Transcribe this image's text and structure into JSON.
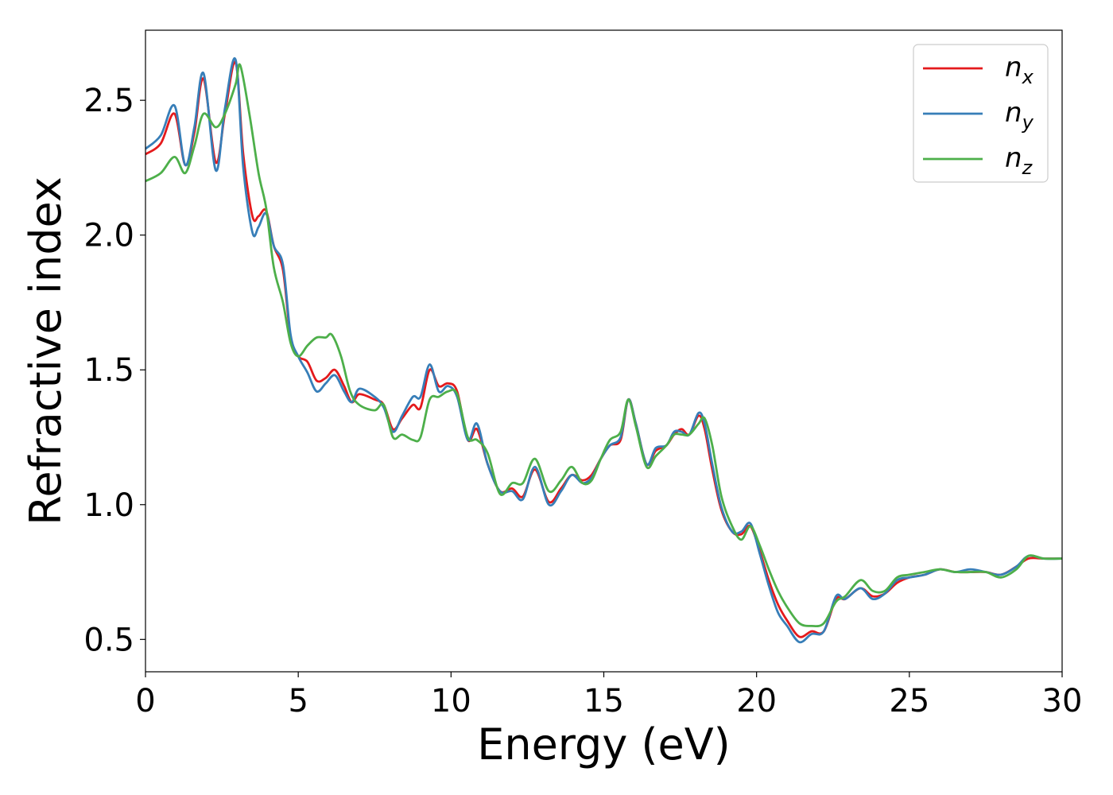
{
  "chart_data": {
    "type": "line",
    "xlabel": "Energy (eV)",
    "ylabel": "Refractive index",
    "xlim": [
      0,
      30
    ],
    "ylim": [
      0.38,
      2.76
    ],
    "xticks": [
      0,
      5,
      10,
      15,
      20,
      25,
      30
    ],
    "xtick_labels": [
      "0",
      "5",
      "10",
      "15",
      "20",
      "25",
      "30"
    ],
    "yticks": [
      0.5,
      1.0,
      1.5,
      2.0,
      2.5
    ],
    "ytick_labels": [
      "0.5",
      "1.0",
      "1.5",
      "2.0",
      "2.5"
    ],
    "grid": false,
    "legend_position": "top-right",
    "series": [
      {
        "name": "n_x",
        "label_main": "n",
        "label_sub": "x",
        "color": "#e41a1c",
        "x": [
          0,
          0.5,
          0.95,
          1.3,
          1.6,
          1.9,
          2.3,
          2.6,
          2.95,
          3.2,
          3.5,
          3.7,
          3.95,
          4.2,
          4.5,
          4.75,
          5.0,
          5.3,
          5.6,
          5.9,
          6.2,
          6.5,
          6.75,
          7.0,
          7.5,
          7.8,
          8.1,
          8.4,
          8.75,
          9.0,
          9.3,
          9.6,
          9.9,
          10.2,
          10.55,
          10.85,
          11.2,
          11.6,
          12.0,
          12.35,
          12.75,
          13.2,
          13.6,
          13.95,
          14.3,
          14.6,
          14.9,
          15.2,
          15.55,
          15.8,
          16.05,
          16.4,
          16.7,
          17.05,
          17.3,
          17.55,
          17.8,
          18.1,
          18.3,
          18.55,
          18.85,
          19.2,
          19.5,
          19.8,
          20.1,
          20.4,
          20.7,
          21.0,
          21.4,
          21.8,
          22.2,
          22.6,
          22.9,
          23.4,
          23.8,
          24.2,
          24.6,
          25.0,
          25.5,
          26.0,
          26.5,
          27.0,
          27.5,
          28.0,
          28.5,
          28.9,
          29.4,
          30.0
        ],
        "y": [
          2.3,
          2.34,
          2.45,
          2.26,
          2.38,
          2.58,
          2.27,
          2.45,
          2.64,
          2.3,
          2.07,
          2.07,
          2.09,
          1.96,
          1.87,
          1.62,
          1.55,
          1.53,
          1.46,
          1.47,
          1.5,
          1.44,
          1.38,
          1.41,
          1.39,
          1.37,
          1.28,
          1.32,
          1.37,
          1.36,
          1.5,
          1.44,
          1.45,
          1.42,
          1.24,
          1.28,
          1.15,
          1.05,
          1.06,
          1.03,
          1.13,
          1.01,
          1.06,
          1.11,
          1.09,
          1.11,
          1.17,
          1.22,
          1.24,
          1.39,
          1.3,
          1.15,
          1.2,
          1.22,
          1.26,
          1.28,
          1.26,
          1.33,
          1.28,
          1.13,
          0.98,
          0.9,
          0.89,
          0.92,
          0.83,
          0.72,
          0.63,
          0.57,
          0.51,
          0.53,
          0.53,
          0.65,
          0.65,
          0.69,
          0.66,
          0.67,
          0.71,
          0.73,
          0.74,
          0.76,
          0.75,
          0.75,
          0.75,
          0.74,
          0.77,
          0.8,
          0.8,
          0.8
        ]
      },
      {
        "name": "n_y",
        "label_main": "n",
        "label_sub": "y",
        "color": "#377eb8",
        "x": [
          0,
          0.5,
          0.95,
          1.3,
          1.6,
          1.9,
          2.3,
          2.6,
          2.95,
          3.2,
          3.5,
          3.7,
          3.95,
          4.2,
          4.5,
          4.75,
          5.0,
          5.3,
          5.6,
          5.9,
          6.2,
          6.5,
          6.75,
          7.0,
          7.5,
          7.8,
          8.1,
          8.4,
          8.75,
          9.0,
          9.3,
          9.6,
          9.9,
          10.2,
          10.55,
          10.85,
          11.2,
          11.6,
          12.0,
          12.35,
          12.75,
          13.2,
          13.6,
          13.95,
          14.3,
          14.6,
          14.9,
          15.2,
          15.55,
          15.8,
          16.05,
          16.4,
          16.7,
          17.05,
          17.3,
          17.55,
          17.8,
          18.1,
          18.3,
          18.55,
          18.85,
          19.2,
          19.5,
          19.8,
          20.1,
          20.4,
          20.7,
          21.0,
          21.4,
          21.8,
          22.2,
          22.6,
          22.9,
          23.4,
          23.8,
          24.2,
          24.6,
          25.0,
          25.5,
          26.0,
          26.5,
          27.0,
          27.5,
          28.0,
          28.5,
          28.9,
          29.4,
          30.0
        ],
        "y": [
          2.32,
          2.37,
          2.48,
          2.26,
          2.4,
          2.6,
          2.24,
          2.47,
          2.65,
          2.25,
          2.01,
          2.03,
          2.08,
          1.96,
          1.89,
          1.63,
          1.55,
          1.49,
          1.42,
          1.45,
          1.48,
          1.42,
          1.38,
          1.43,
          1.4,
          1.36,
          1.27,
          1.33,
          1.4,
          1.4,
          1.52,
          1.42,
          1.44,
          1.4,
          1.24,
          1.3,
          1.15,
          1.05,
          1.05,
          1.02,
          1.14,
          1.0,
          1.05,
          1.11,
          1.08,
          1.1,
          1.17,
          1.22,
          1.25,
          1.39,
          1.3,
          1.15,
          1.21,
          1.22,
          1.27,
          1.27,
          1.26,
          1.34,
          1.3,
          1.15,
          0.99,
          0.9,
          0.9,
          0.93,
          0.82,
          0.7,
          0.6,
          0.55,
          0.49,
          0.52,
          0.53,
          0.66,
          0.65,
          0.69,
          0.65,
          0.67,
          0.72,
          0.73,
          0.74,
          0.76,
          0.75,
          0.76,
          0.75,
          0.74,
          0.77,
          0.81,
          0.8,
          0.8
        ]
      },
      {
        "name": "n_z",
        "label_main": "n",
        "label_sub": "z",
        "color": "#4daf4a",
        "x": [
          0,
          0.5,
          0.95,
          1.3,
          1.6,
          1.9,
          2.3,
          2.6,
          2.95,
          3.1,
          3.4,
          3.7,
          3.95,
          4.2,
          4.5,
          4.75,
          5.0,
          5.3,
          5.6,
          5.9,
          6.1,
          6.4,
          6.7,
          7.0,
          7.5,
          7.8,
          8.1,
          8.4,
          8.75,
          9.0,
          9.3,
          9.6,
          9.9,
          10.2,
          10.55,
          10.85,
          11.2,
          11.6,
          12.0,
          12.35,
          12.75,
          13.2,
          13.6,
          13.95,
          14.3,
          14.6,
          14.9,
          15.2,
          15.55,
          15.8,
          16.05,
          16.4,
          16.7,
          17.05,
          17.3,
          17.55,
          17.8,
          18.1,
          18.3,
          18.55,
          18.85,
          19.2,
          19.5,
          19.8,
          20.1,
          20.4,
          20.7,
          21.0,
          21.4,
          21.8,
          22.2,
          22.6,
          22.9,
          23.4,
          23.8,
          24.2,
          24.6,
          25.0,
          25.5,
          26.0,
          26.5,
          27.0,
          27.5,
          28.0,
          28.5,
          28.9,
          29.4,
          30.0
        ],
        "y": [
          2.2,
          2.23,
          2.29,
          2.23,
          2.33,
          2.45,
          2.4,
          2.45,
          2.56,
          2.63,
          2.45,
          2.23,
          2.1,
          1.88,
          1.75,
          1.6,
          1.55,
          1.59,
          1.62,
          1.62,
          1.63,
          1.55,
          1.42,
          1.37,
          1.35,
          1.37,
          1.25,
          1.26,
          1.24,
          1.25,
          1.39,
          1.4,
          1.42,
          1.41,
          1.25,
          1.24,
          1.19,
          1.04,
          1.08,
          1.08,
          1.17,
          1.05,
          1.09,
          1.14,
          1.08,
          1.09,
          1.17,
          1.24,
          1.27,
          1.39,
          1.29,
          1.14,
          1.18,
          1.22,
          1.26,
          1.26,
          1.26,
          1.3,
          1.32,
          1.22,
          1.03,
          0.92,
          0.87,
          0.92,
          0.85,
          0.76,
          0.68,
          0.62,
          0.56,
          0.55,
          0.56,
          0.64,
          0.66,
          0.72,
          0.68,
          0.68,
          0.73,
          0.74,
          0.75,
          0.76,
          0.75,
          0.75,
          0.75,
          0.73,
          0.76,
          0.81,
          0.8,
          0.8
        ]
      }
    ]
  }
}
